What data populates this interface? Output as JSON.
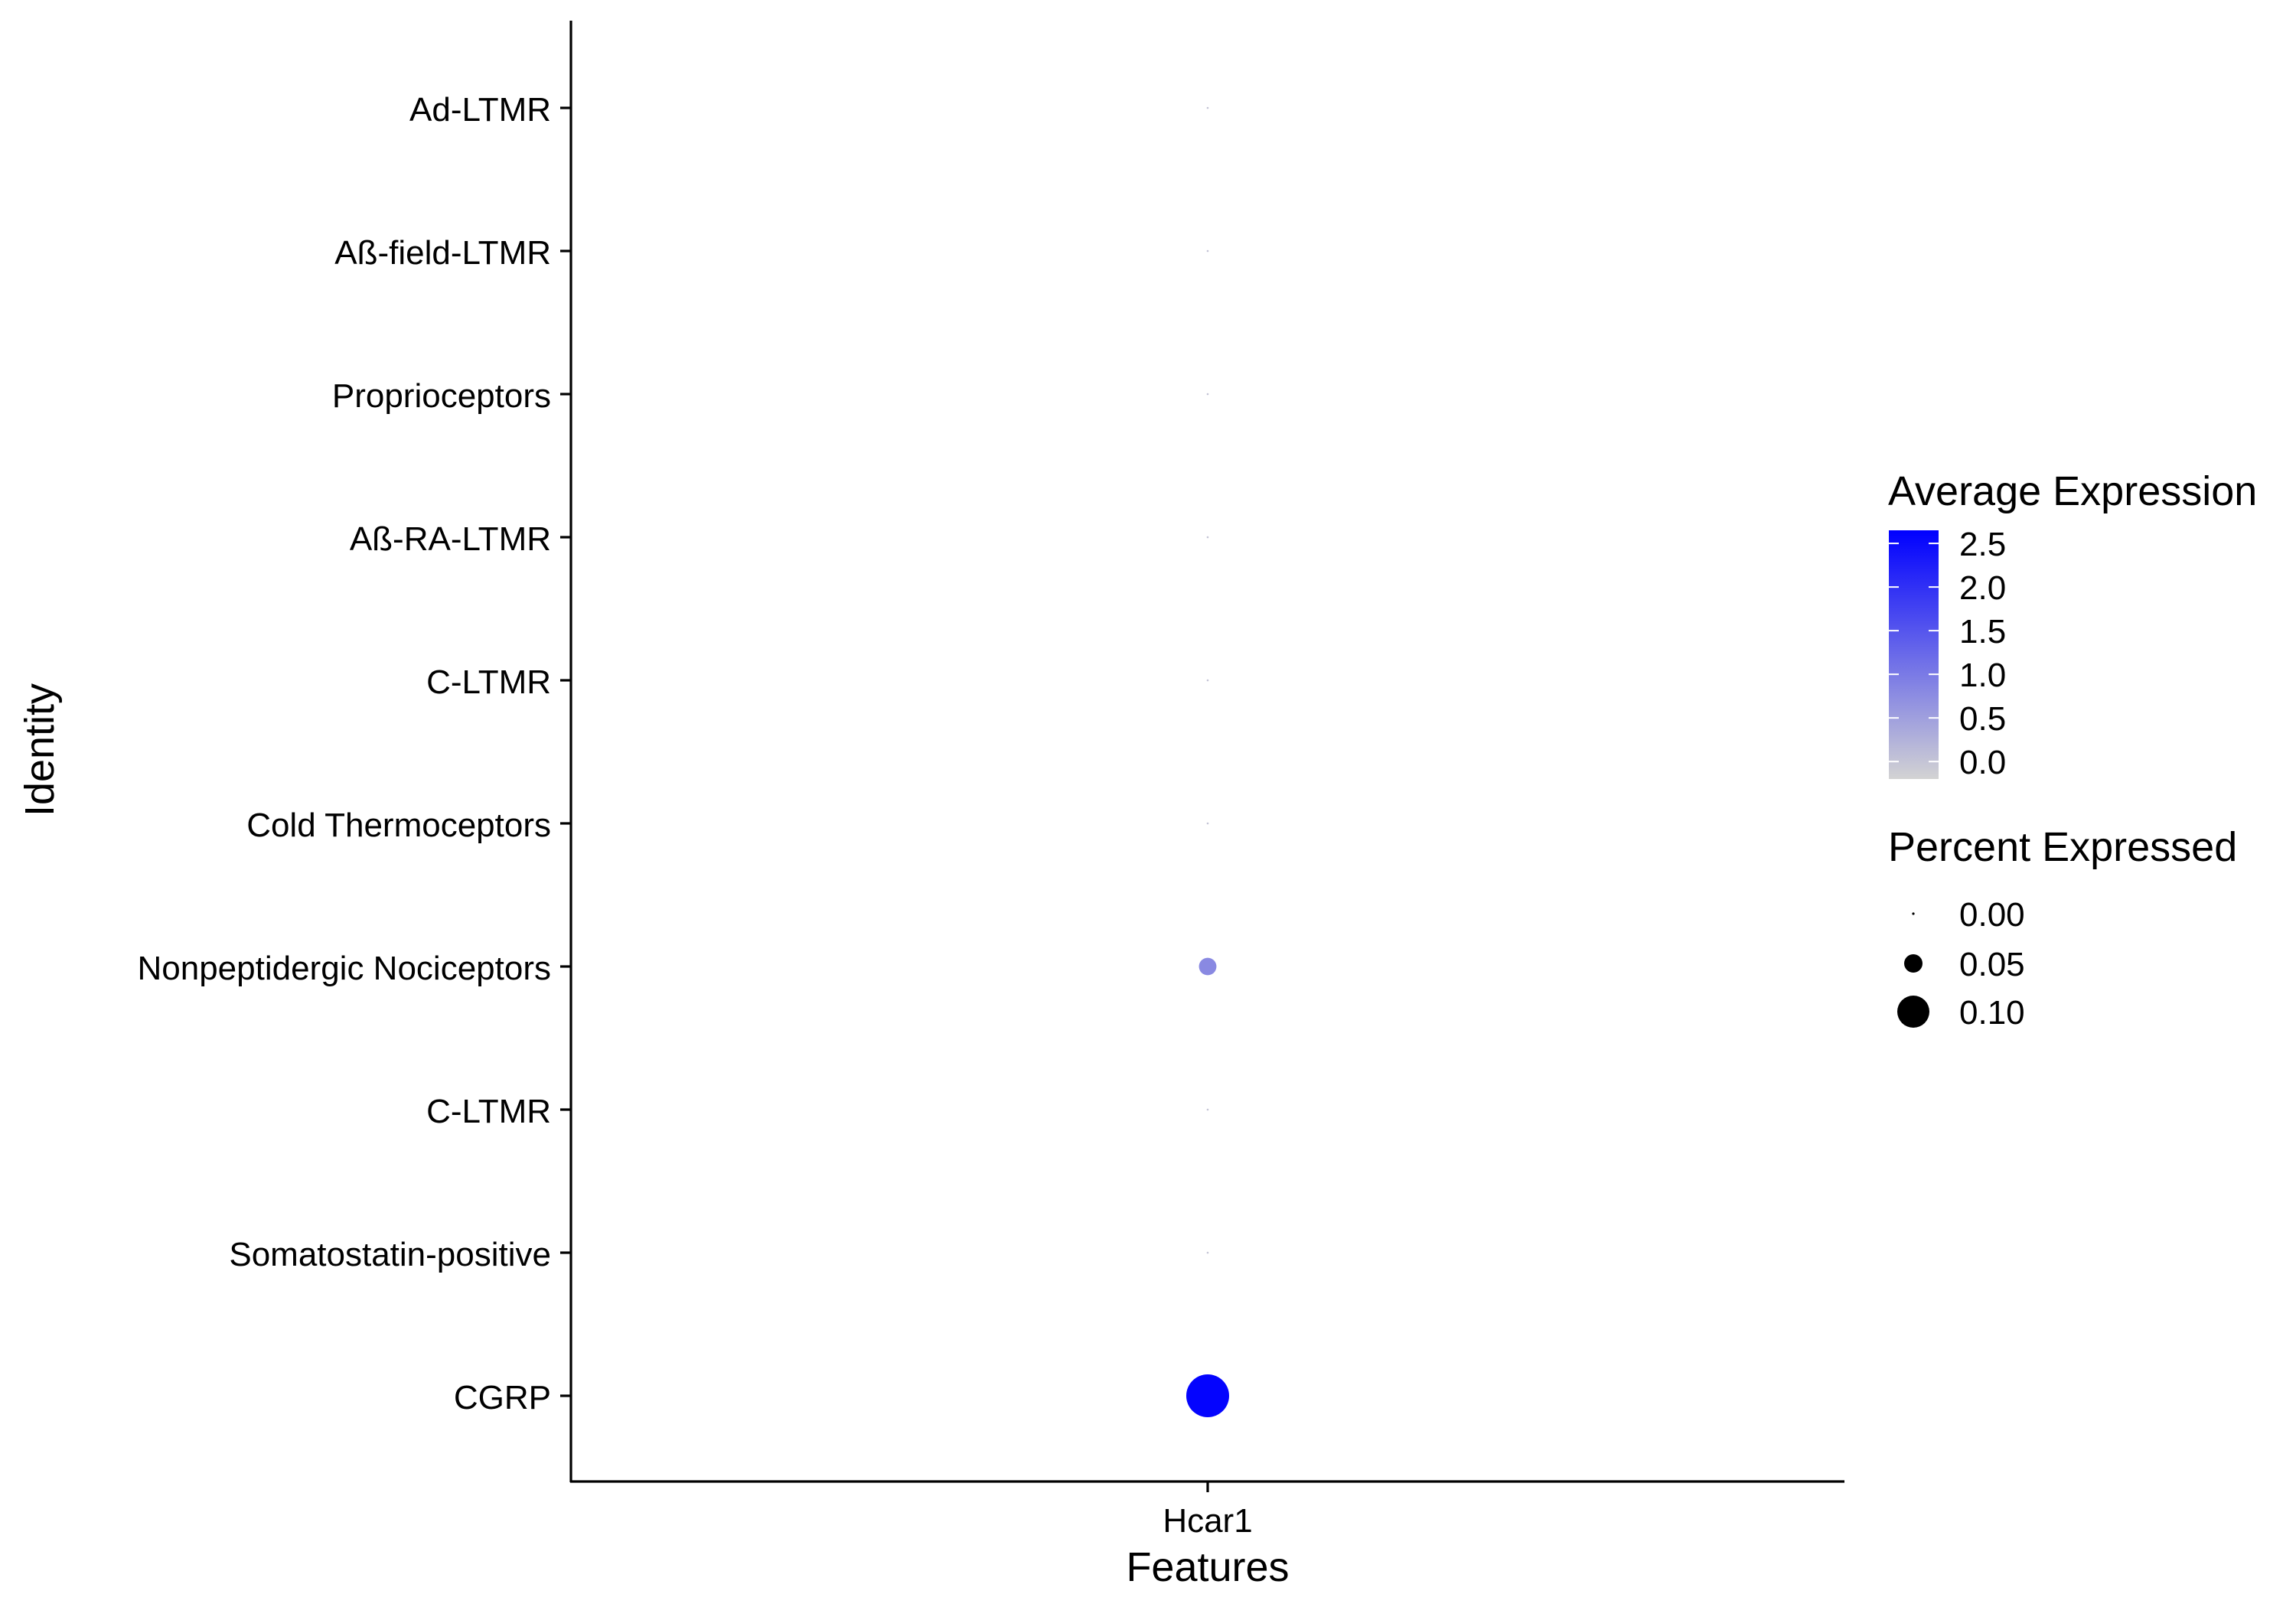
{
  "chart_data": {
    "type": "dot",
    "xlabel": "Features",
    "ylabel": "Identity",
    "features": [
      "Hcar1"
    ],
    "identities": [
      "Ad-LTMR",
      "Aß-field-LTMR",
      "Proprioceptors",
      "Aß-RA-LTMR",
      "C-LTMR",
      "Cold Thermoceptors",
      "Nonpeptidergic Nociceptors",
      "C-LTMR",
      "Somatostatin-positive",
      "CGRP"
    ],
    "points": [
      {
        "feature": "Hcar1",
        "identity": "Ad-LTMR",
        "avg_exp": 0.0,
        "pct_exp": 0.0
      },
      {
        "feature": "Hcar1",
        "identity": "Aß-field-LTMR",
        "avg_exp": 0.0,
        "pct_exp": 0.0
      },
      {
        "feature": "Hcar1",
        "identity": "Proprioceptors",
        "avg_exp": 0.0,
        "pct_exp": 0.0
      },
      {
        "feature": "Hcar1",
        "identity": "Aß-RA-LTMR",
        "avg_exp": 0.0,
        "pct_exp": 0.0
      },
      {
        "feature": "Hcar1",
        "identity": "C-LTMR",
        "avg_exp": 0.0,
        "pct_exp": 0.0
      },
      {
        "feature": "Hcar1",
        "identity": "Cold Thermoceptors",
        "avg_exp": 0.0,
        "pct_exp": 0.0
      },
      {
        "feature": "Hcar1",
        "identity": "Nonpeptidergic Nociceptors",
        "avg_exp": 0.8,
        "pct_exp": 0.02
      },
      {
        "feature": "Hcar1",
        "identity": "C-LTMR",
        "avg_exp": 0.0,
        "pct_exp": 0.0
      },
      {
        "feature": "Hcar1",
        "identity": "Somatostatin-positive",
        "avg_exp": 0.0,
        "pct_exp": 0.0
      },
      {
        "feature": "Hcar1",
        "identity": "CGRP",
        "avg_exp": 2.6,
        "pct_exp": 0.12
      }
    ],
    "legend": {
      "color_title": "Average Expression",
      "color_low": "#d3d3d3",
      "color_high": "#0000ff",
      "color_domain": [
        -0.2,
        2.65
      ],
      "color_ticks": [
        2.5,
        2.0,
        1.5,
        1.0,
        0.5,
        0.0
      ],
      "color_tick_labels": [
        "2.5",
        "2.0",
        "1.5",
        "1.0",
        "0.5",
        "0.0"
      ],
      "size_title": "Percent Expressed",
      "size_values": [
        0.0,
        0.05,
        0.1
      ],
      "size_labels": [
        "0.00",
        "0.05",
        "0.10"
      ]
    },
    "grid": false,
    "legend_position": "right"
  }
}
